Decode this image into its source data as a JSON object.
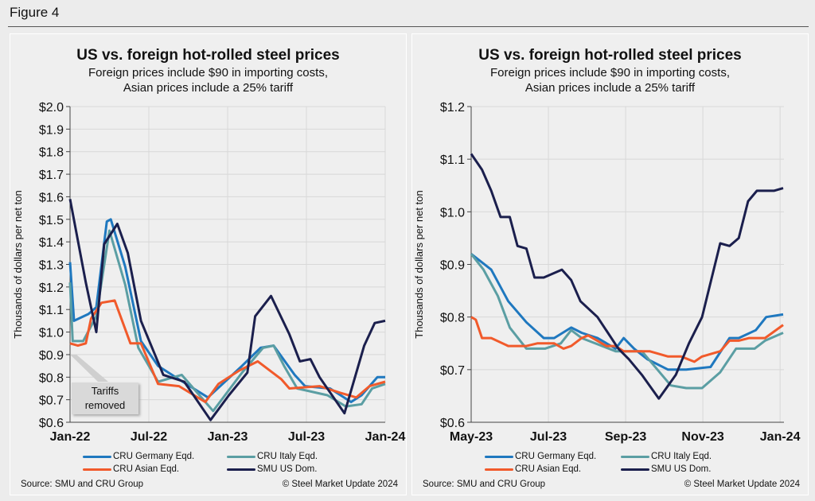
{
  "figure_label": "Figure 4",
  "colors": {
    "germany": "#1f78bf",
    "italy": "#5b9ea3",
    "asian": "#f15a2b",
    "smu": "#1b1f4d"
  },
  "chart_data": [
    {
      "type": "line",
      "title": "US vs. foreign hot-rolled steel prices",
      "subtitle_1": "Foreign prices include $90 in importing costs,",
      "subtitle_2": "Asian prices include a 25% tariff",
      "ylabel": "Thousands of dollars per net ton",
      "ylim": [
        0.6,
        2.0
      ],
      "yticks": [
        "$0.6",
        "$0.7",
        "$0.8",
        "$0.9",
        "$1.0",
        "$1.1",
        "$1.2",
        "$1.3",
        "$1.4",
        "$1.5",
        "$1.6",
        "$1.7",
        "$1.8",
        "$1.9",
        "$2.0"
      ],
      "x_unit": "months since Jan-22",
      "xlim": [
        0,
        24
      ],
      "xticks": [
        {
          "x": 0,
          "label": "Jan-22"
        },
        {
          "x": 6,
          "label": "Jul-22"
        },
        {
          "x": 12,
          "label": "Jan-23"
        },
        {
          "x": 18,
          "label": "Jul-23"
        },
        {
          "x": 24,
          "label": "Jan-24"
        }
      ],
      "grid": true,
      "annotation": {
        "line1": "Tariffs",
        "line2": "removed"
      },
      "series": [
        {
          "name": "CRU Germany Eqd.",
          "key": "germany",
          "points": [
            [
              0,
              1.31
            ],
            [
              0.3,
              1.05
            ],
            [
              1.4,
              1.08
            ],
            [
              2,
              1.11
            ],
            [
              2.8,
              1.49
            ],
            [
              3.1,
              1.5
            ],
            [
              4.2,
              1.29
            ],
            [
              5.4,
              0.96
            ],
            [
              6.7,
              0.85
            ],
            [
              8.3,
              0.79
            ],
            [
              10.5,
              0.71
            ],
            [
              13.1,
              0.85
            ],
            [
              14.5,
              0.93
            ],
            [
              15.5,
              0.94
            ],
            [
              17.1,
              0.81
            ],
            [
              17.9,
              0.76
            ],
            [
              19.8,
              0.75
            ],
            [
              21.4,
              0.69
            ],
            [
              22.2,
              0.72
            ],
            [
              23.4,
              0.8
            ],
            [
              24,
              0.8
            ]
          ]
        },
        {
          "name": "CRU Italy Eqd.",
          "key": "italy",
          "points": [
            [
              0,
              1.22
            ],
            [
              0.2,
              0.96
            ],
            [
              1,
              0.96
            ],
            [
              2,
              1.07
            ],
            [
              3,
              1.45
            ],
            [
              4.2,
              1.21
            ],
            [
              5.2,
              0.93
            ],
            [
              6.7,
              0.78
            ],
            [
              8.5,
              0.81
            ],
            [
              10.9,
              0.65
            ],
            [
              13.1,
              0.82
            ],
            [
              14.7,
              0.93
            ],
            [
              15.5,
              0.94
            ],
            [
              16.3,
              0.85
            ],
            [
              17.3,
              0.75
            ],
            [
              19.6,
              0.72
            ],
            [
              21,
              0.67
            ],
            [
              22.2,
              0.68
            ],
            [
              23,
              0.75
            ],
            [
              24,
              0.77
            ]
          ]
        },
        {
          "name": "CRU Asian Eqd.",
          "key": "asian",
          "points": [
            [
              0,
              0.95
            ],
            [
              0.6,
              0.94
            ],
            [
              1.2,
              0.95
            ],
            [
              1.6,
              1.06
            ],
            [
              2.4,
              1.13
            ],
            [
              3.4,
              1.14
            ],
            [
              4.6,
              0.95
            ],
            [
              5.4,
              0.95
            ],
            [
              6.7,
              0.77
            ],
            [
              8.3,
              0.76
            ],
            [
              10.3,
              0.69
            ],
            [
              11.3,
              0.77
            ],
            [
              12.9,
              0.83
            ],
            [
              14.3,
              0.87
            ],
            [
              16.1,
              0.79
            ],
            [
              16.7,
              0.75
            ],
            [
              19,
              0.76
            ],
            [
              20.6,
              0.73
            ],
            [
              21.8,
              0.71
            ],
            [
              22.8,
              0.76
            ],
            [
              24,
              0.78
            ]
          ]
        },
        {
          "name": "SMU US Dom.",
          "key": "smu",
          "points": [
            [
              0,
              1.59
            ],
            [
              1.2,
              1.22
            ],
            [
              2,
              1.0
            ],
            [
              2.6,
              1.39
            ],
            [
              3.6,
              1.48
            ],
            [
              4.4,
              1.35
            ],
            [
              5.4,
              1.05
            ],
            [
              7.1,
              0.81
            ],
            [
              8.7,
              0.78
            ],
            [
              10.7,
              0.61
            ],
            [
              12.1,
              0.72
            ],
            [
              13.5,
              0.82
            ],
            [
              14.1,
              1.07
            ],
            [
              15.3,
              1.16
            ],
            [
              16.7,
              0.99
            ],
            [
              17.5,
              0.87
            ],
            [
              18.3,
              0.88
            ],
            [
              19,
              0.8
            ],
            [
              20.9,
              0.64
            ],
            [
              22.4,
              0.94
            ],
            [
              23.2,
              1.04
            ],
            [
              24,
              1.05
            ]
          ]
        }
      ],
      "source": "Source: SMU and CRU Group",
      "copyright": "© Steel Market Update 2024"
    },
    {
      "type": "line",
      "title": "US vs. foreign hot-rolled steel prices",
      "subtitle_1": "Foreign prices include $90 in importing costs,",
      "subtitle_2": "Asian prices include a 25% tariff",
      "ylabel": "Thousands of dollars per net ton",
      "ylim": [
        0.6,
        1.2
      ],
      "yticks": [
        "$0.6",
        "$0.7",
        "$0.8",
        "$0.9",
        "$1.0",
        "$1.1",
        "$1.2"
      ],
      "x_unit": "months since May-23",
      "xlim": [
        0,
        8.1
      ],
      "xticks": [
        {
          "x": 0,
          "label": "May-23"
        },
        {
          "x": 2,
          "label": "Jul-23"
        },
        {
          "x": 4,
          "label": "Sep-23"
        },
        {
          "x": 6,
          "label": "Nov-23"
        },
        {
          "x": 8,
          "label": "Jan-24"
        }
      ],
      "grid": true,
      "series": [
        {
          "name": "CRU Germany Eqd.",
          "key": "germany",
          "points": [
            [
              0,
              0.92
            ],
            [
              0.52,
              0.89
            ],
            [
              0.96,
              0.83
            ],
            [
              1.43,
              0.79
            ],
            [
              1.88,
              0.76
            ],
            [
              2.15,
              0.76
            ],
            [
              2.59,
              0.78
            ],
            [
              2.86,
              0.77
            ],
            [
              3.27,
              0.76
            ],
            [
              3.74,
              0.74
            ],
            [
              3.95,
              0.76
            ],
            [
              4.22,
              0.74
            ],
            [
              4.56,
              0.72
            ],
            [
              5.1,
              0.7
            ],
            [
              5.57,
              0.7
            ],
            [
              6.2,
              0.705
            ],
            [
              6.69,
              0.76
            ],
            [
              6.93,
              0.76
            ],
            [
              7.37,
              0.775
            ],
            [
              7.64,
              0.8
            ],
            [
              8.08,
              0.805
            ]
          ]
        },
        {
          "name": "CRU Italy Eqd.",
          "key": "italy",
          "points": [
            [
              0,
              0.92
            ],
            [
              0.32,
              0.89
            ],
            [
              0.69,
              0.84
            ],
            [
              1,
              0.78
            ],
            [
              1.43,
              0.74
            ],
            [
              1.91,
              0.74
            ],
            [
              2.32,
              0.75
            ],
            [
              2.59,
              0.775
            ],
            [
              2.86,
              0.76
            ],
            [
              3.74,
              0.735
            ],
            [
              4.42,
              0.735
            ],
            [
              5.17,
              0.67
            ],
            [
              5.57,
              0.665
            ],
            [
              5.98,
              0.665
            ],
            [
              6.45,
              0.695
            ],
            [
              6.86,
              0.74
            ],
            [
              7.34,
              0.74
            ],
            [
              7.61,
              0.755
            ],
            [
              8.08,
              0.77
            ]
          ]
        },
        {
          "name": "CRU Asian Eqd.",
          "key": "asian",
          "points": [
            [
              0,
              0.8
            ],
            [
              0.12,
              0.795
            ],
            [
              0.28,
              0.76
            ],
            [
              0.52,
              0.76
            ],
            [
              0.96,
              0.745
            ],
            [
              1.43,
              0.745
            ],
            [
              1.71,
              0.75
            ],
            [
              2.15,
              0.75
            ],
            [
              2.39,
              0.74
            ],
            [
              2.59,
              0.745
            ],
            [
              2.86,
              0.76
            ],
            [
              3.03,
              0.765
            ],
            [
              3.5,
              0.745
            ],
            [
              3.74,
              0.745
            ],
            [
              3.95,
              0.735
            ],
            [
              4.62,
              0.735
            ],
            [
              5.1,
              0.725
            ],
            [
              5.44,
              0.725
            ],
            [
              5.78,
              0.715
            ],
            [
              5.98,
              0.725
            ],
            [
              6.45,
              0.735
            ],
            [
              6.69,
              0.755
            ],
            [
              6.93,
              0.755
            ],
            [
              7.2,
              0.76
            ],
            [
              7.61,
              0.76
            ],
            [
              8.08,
              0.785
            ]
          ]
        },
        {
          "name": "SMU US Dom.",
          "key": "smu",
          "points": [
            [
              0,
              1.11
            ],
            [
              0.28,
              1.08
            ],
            [
              0.52,
              1.04
            ],
            [
              0.76,
              0.99
            ],
            [
              1,
              0.99
            ],
            [
              1.2,
              0.935
            ],
            [
              1.43,
              0.93
            ],
            [
              1.64,
              0.875
            ],
            [
              1.88,
              0.875
            ],
            [
              2.35,
              0.89
            ],
            [
              2.59,
              0.87
            ],
            [
              2.83,
              0.83
            ],
            [
              3.27,
              0.8
            ],
            [
              3.54,
              0.77
            ],
            [
              3.81,
              0.74
            ],
            [
              4.08,
              0.72
            ],
            [
              4.42,
              0.69
            ],
            [
              4.86,
              0.645
            ],
            [
              5.3,
              0.69
            ],
            [
              5.64,
              0.75
            ],
            [
              5.98,
              0.8
            ],
            [
              6.45,
              0.94
            ],
            [
              6.69,
              0.935
            ],
            [
              6.93,
              0.95
            ],
            [
              7.17,
              1.02
            ],
            [
              7.4,
              1.04
            ],
            [
              7.84,
              1.04
            ],
            [
              8.08,
              1.045
            ]
          ]
        }
      ],
      "source": "Source: SMU and CRU Group",
      "copyright": "© Steel Market Update 2024"
    }
  ]
}
